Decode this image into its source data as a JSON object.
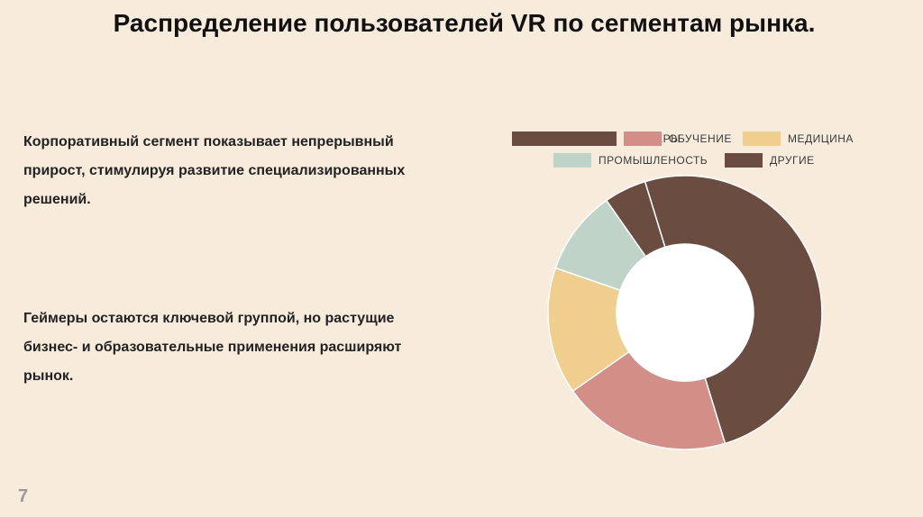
{
  "slide": {
    "title": "Распределение пользователей VR по сегментам рынка.",
    "paragraph_1": "Корпоративный сегмент показывает непрерывный прирост, стимулируя развитие специализированных решений.",
    "paragraph_2": "Геймеры остаются ключевой группой, но растущие бизнес- и образовательные применения расширяют рынок.",
    "page_number": "7"
  },
  "chart_data": {
    "type": "pie",
    "variant": "donut",
    "categories": [
      "ГЕЙМЕРЫ",
      "ОБУЧЕНИЕ",
      "МЕДИЦИНА",
      "ПРОМЫШЛЕНОСТЬ",
      "ДРУГИЕ"
    ],
    "values": [
      50,
      20,
      15,
      10,
      5
    ],
    "colors": [
      "#6b4c40",
      "#d48e88",
      "#efce8e",
      "#bfd3c9",
      "#6b4c40"
    ],
    "legend": "top",
    "start_angle_deg": -17,
    "direction": "clockwise"
  }
}
